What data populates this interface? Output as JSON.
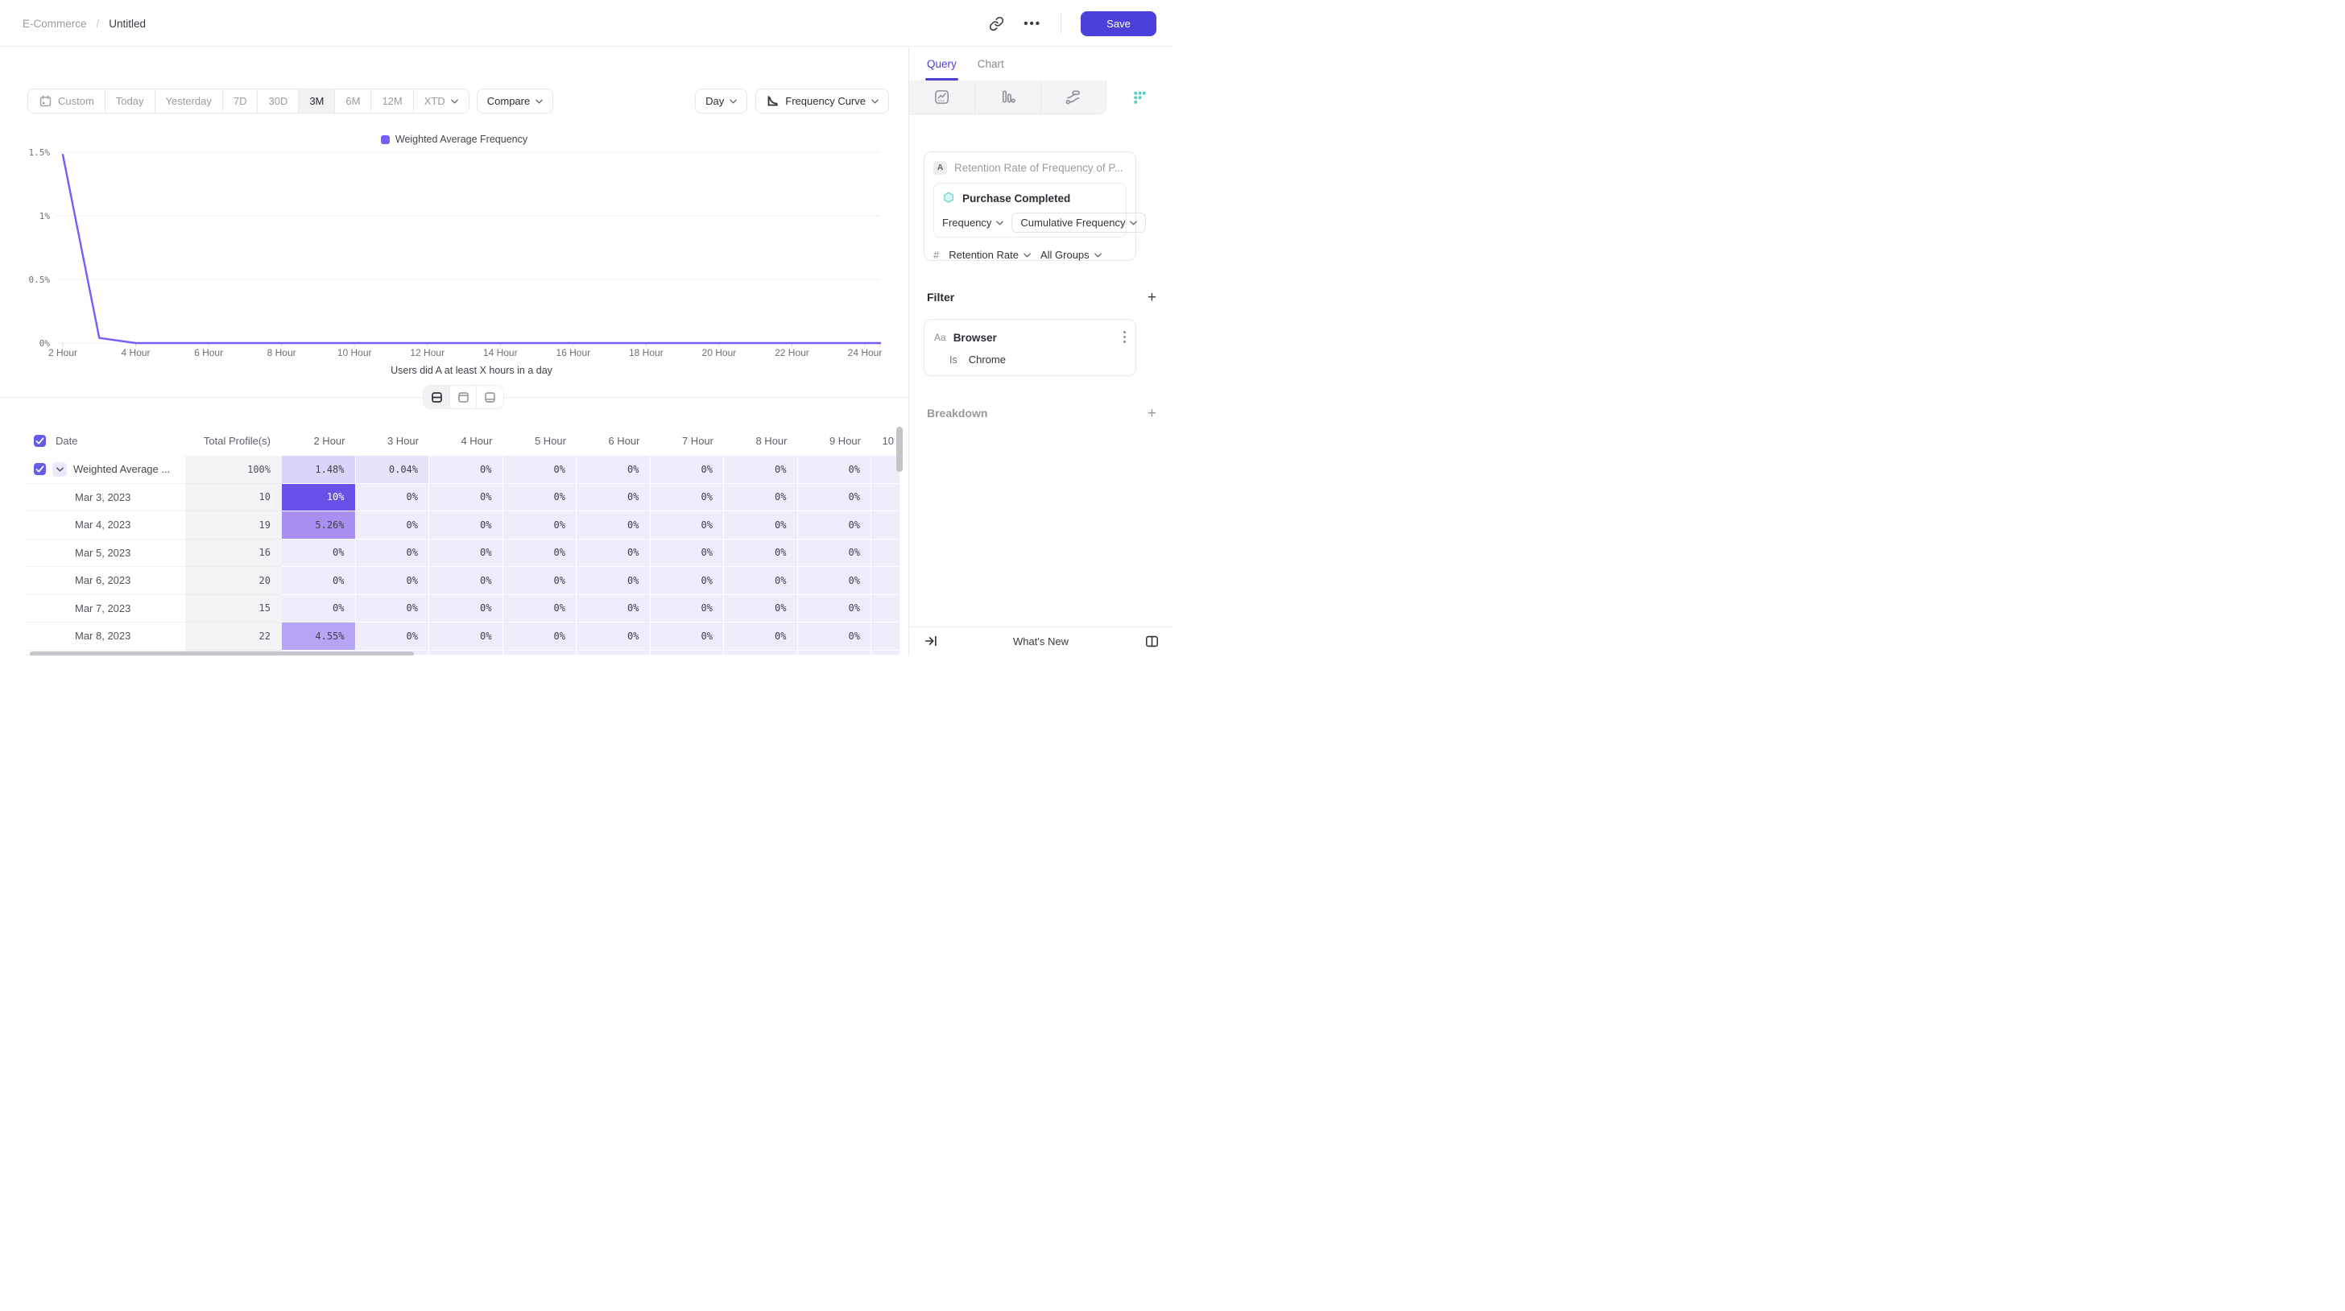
{
  "colors": {
    "accent": "#4c40db",
    "line": "#7a5af8",
    "teal": "#56d0c2",
    "heat_zero": "#efecfc",
    "heat_low": "#e8e2fb",
    "heat_mid1": "#dcd3f9",
    "heat_mid2": "#b6a5f4",
    "heat_mid3": "#a88ff1",
    "heat_high": "#6b4fe9"
  },
  "topbar": {
    "breadcrumb": {
      "section": "E-Commerce",
      "separator": "/",
      "title": "Untitled"
    },
    "save": "Save"
  },
  "toolbar": {
    "ranges": [
      "Custom",
      "Today",
      "Yesterday",
      "7D",
      "30D",
      "3M",
      "6M",
      "12M",
      "XTD"
    ],
    "selected": "3M",
    "compare": "Compare",
    "granularity": "Day",
    "view": "Frequency Curve"
  },
  "chart_data": {
    "type": "line",
    "title": "",
    "xlabel": "Users did A at least X hours in a day",
    "ylabel": "",
    "ylim": [
      0,
      1.5
    ],
    "xlim": [
      2,
      24
    ],
    "grid": "horizontal",
    "legend_position": "top-center",
    "y_ticks": [
      {
        "v": 0,
        "label": "0%"
      },
      {
        "v": 0.5,
        "label": "0.5%"
      },
      {
        "v": 1,
        "label": "1%"
      },
      {
        "v": 1.5,
        "label": "1.5%"
      }
    ],
    "x_ticks": [
      {
        "v": 2,
        "label": "2 Hour"
      },
      {
        "v": 4,
        "label": "4 Hour"
      },
      {
        "v": 6,
        "label": "6 Hour"
      },
      {
        "v": 8,
        "label": "8 Hour"
      },
      {
        "v": 10,
        "label": "10 Hour"
      },
      {
        "v": 12,
        "label": "12 Hour"
      },
      {
        "v": 14,
        "label": "14 Hour"
      },
      {
        "v": 16,
        "label": "16 Hour"
      },
      {
        "v": 18,
        "label": "18 Hour"
      },
      {
        "v": 20,
        "label": "20 Hour"
      },
      {
        "v": 22,
        "label": "22 Hour"
      },
      {
        "v": 24,
        "label": "24 Hour"
      }
    ],
    "series": [
      {
        "name": "Weighted Average Frequency",
        "color": "#7a5af8",
        "x": [
          2,
          3,
          4,
          5,
          6,
          7,
          8,
          9,
          10,
          11,
          12,
          13,
          14,
          15,
          16,
          17,
          18,
          19,
          20,
          21,
          22,
          23,
          24
        ],
        "values": [
          1.48,
          0.04,
          0,
          0,
          0,
          0,
          0,
          0,
          0,
          0,
          0,
          0,
          0,
          0,
          0,
          0,
          0,
          0,
          0,
          0,
          0,
          0,
          0
        ]
      }
    ]
  },
  "table": {
    "header": {
      "date": "Date",
      "total": "Total Profile(s)",
      "hours": [
        "2 Hour",
        "3 Hour",
        "4 Hour",
        "5 Hour",
        "6 Hour",
        "7 Hour",
        "8 Hour",
        "9 Hour"
      ],
      "partial": "10"
    },
    "rows": [
      {
        "label": "Weighted Average ...",
        "summary": true,
        "checked": true,
        "total": "100%",
        "cells": [
          "1.48%",
          "0.04%",
          "0%",
          "0%",
          "0%",
          "0%",
          "0%",
          "0%"
        ],
        "heat": [
          "mid1",
          "low",
          "zero",
          "zero",
          "zero",
          "zero",
          "zero",
          "zero"
        ]
      },
      {
        "label": "Mar 3, 2023",
        "total": "10",
        "cells": [
          "10%",
          "0%",
          "0%",
          "0%",
          "0%",
          "0%",
          "0%",
          "0%"
        ],
        "heat": [
          "high",
          "zero",
          "zero",
          "zero",
          "zero",
          "zero",
          "zero",
          "zero"
        ]
      },
      {
        "label": "Mar 4, 2023",
        "total": "19",
        "cells": [
          "5.26%",
          "0%",
          "0%",
          "0%",
          "0%",
          "0%",
          "0%",
          "0%"
        ],
        "heat": [
          "mid3",
          "zero",
          "zero",
          "zero",
          "zero",
          "zero",
          "zero",
          "zero"
        ]
      },
      {
        "label": "Mar 5, 2023",
        "total": "16",
        "cells": [
          "0%",
          "0%",
          "0%",
          "0%",
          "0%",
          "0%",
          "0%",
          "0%"
        ],
        "heat": [
          "zero",
          "zero",
          "zero",
          "zero",
          "zero",
          "zero",
          "zero",
          "zero"
        ]
      },
      {
        "label": "Mar 6, 2023",
        "total": "20",
        "cells": [
          "0%",
          "0%",
          "0%",
          "0%",
          "0%",
          "0%",
          "0%",
          "0%"
        ],
        "heat": [
          "zero",
          "zero",
          "zero",
          "zero",
          "zero",
          "zero",
          "zero",
          "zero"
        ]
      },
      {
        "label": "Mar 7, 2023",
        "total": "15",
        "cells": [
          "0%",
          "0%",
          "0%",
          "0%",
          "0%",
          "0%",
          "0%",
          "0%"
        ],
        "heat": [
          "zero",
          "zero",
          "zero",
          "zero",
          "zero",
          "zero",
          "zero",
          "zero"
        ]
      },
      {
        "label": "Mar 8, 2023",
        "total": "22",
        "cells": [
          "4.55%",
          "0%",
          "0%",
          "0%",
          "0%",
          "0%",
          "0%",
          "0%"
        ],
        "heat": [
          "mid2",
          "zero",
          "zero",
          "zero",
          "zero",
          "zero",
          "zero",
          "zero"
        ]
      }
    ]
  },
  "sidebar": {
    "tabs": [
      {
        "label": "Query",
        "active": true
      },
      {
        "label": "Chart",
        "active": false
      }
    ],
    "chart_types": [
      "insights",
      "funnels",
      "flows",
      "retention"
    ],
    "active_chart_type": "retention",
    "query": {
      "badge": "A",
      "title": "Retention Rate of Frequency of P...",
      "event": "Purchase Completed",
      "frequency": "Frequency",
      "measure": "Cumulative Frequency",
      "hash": "#",
      "retention": "Retention Rate",
      "groups": "All Groups"
    },
    "filter": {
      "title": "Filter",
      "property_type": "Aa",
      "property": "Browser",
      "operator": "Is",
      "value": "Chrome"
    },
    "breakdown": {
      "title": "Breakdown"
    },
    "footer": {
      "whats_new": "What's New"
    }
  }
}
